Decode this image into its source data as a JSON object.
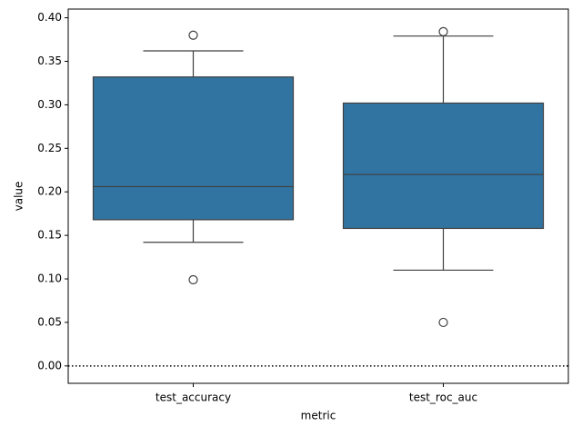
{
  "chart_data": {
    "type": "box",
    "xlabel": "metric",
    "ylabel": "value",
    "categories": [
      "test_accuracy",
      "test_roc_auc"
    ],
    "color": "#3274a1",
    "boxes": [
      {
        "whisker_low": 0.142,
        "q1": 0.168,
        "median": 0.206,
        "q3": 0.332,
        "whisker_high": 0.362,
        "outliers": [
          0.38,
          0.099
        ]
      },
      {
        "whisker_low": 0.11,
        "q1": 0.158,
        "median": 0.22,
        "q3": 0.302,
        "whisker_high": 0.379,
        "outliers": [
          0.384,
          0.05
        ]
      }
    ],
    "reference_line": 0,
    "ylim": [
      -0.02,
      0.41
    ],
    "yticks": [
      {
        "value": 0,
        "label": "0.00"
      },
      {
        "value": 0.05,
        "label": "0.05"
      },
      {
        "value": 0.1,
        "label": "0.10"
      },
      {
        "value": 0.15,
        "label": "0.15"
      },
      {
        "value": 0.2,
        "label": "0.20"
      },
      {
        "value": 0.25,
        "label": "0.25"
      },
      {
        "value": 0.3,
        "label": "0.30"
      },
      {
        "value": 0.35,
        "label": "0.35"
      },
      {
        "value": 0.4,
        "label": "0.40"
      }
    ]
  }
}
